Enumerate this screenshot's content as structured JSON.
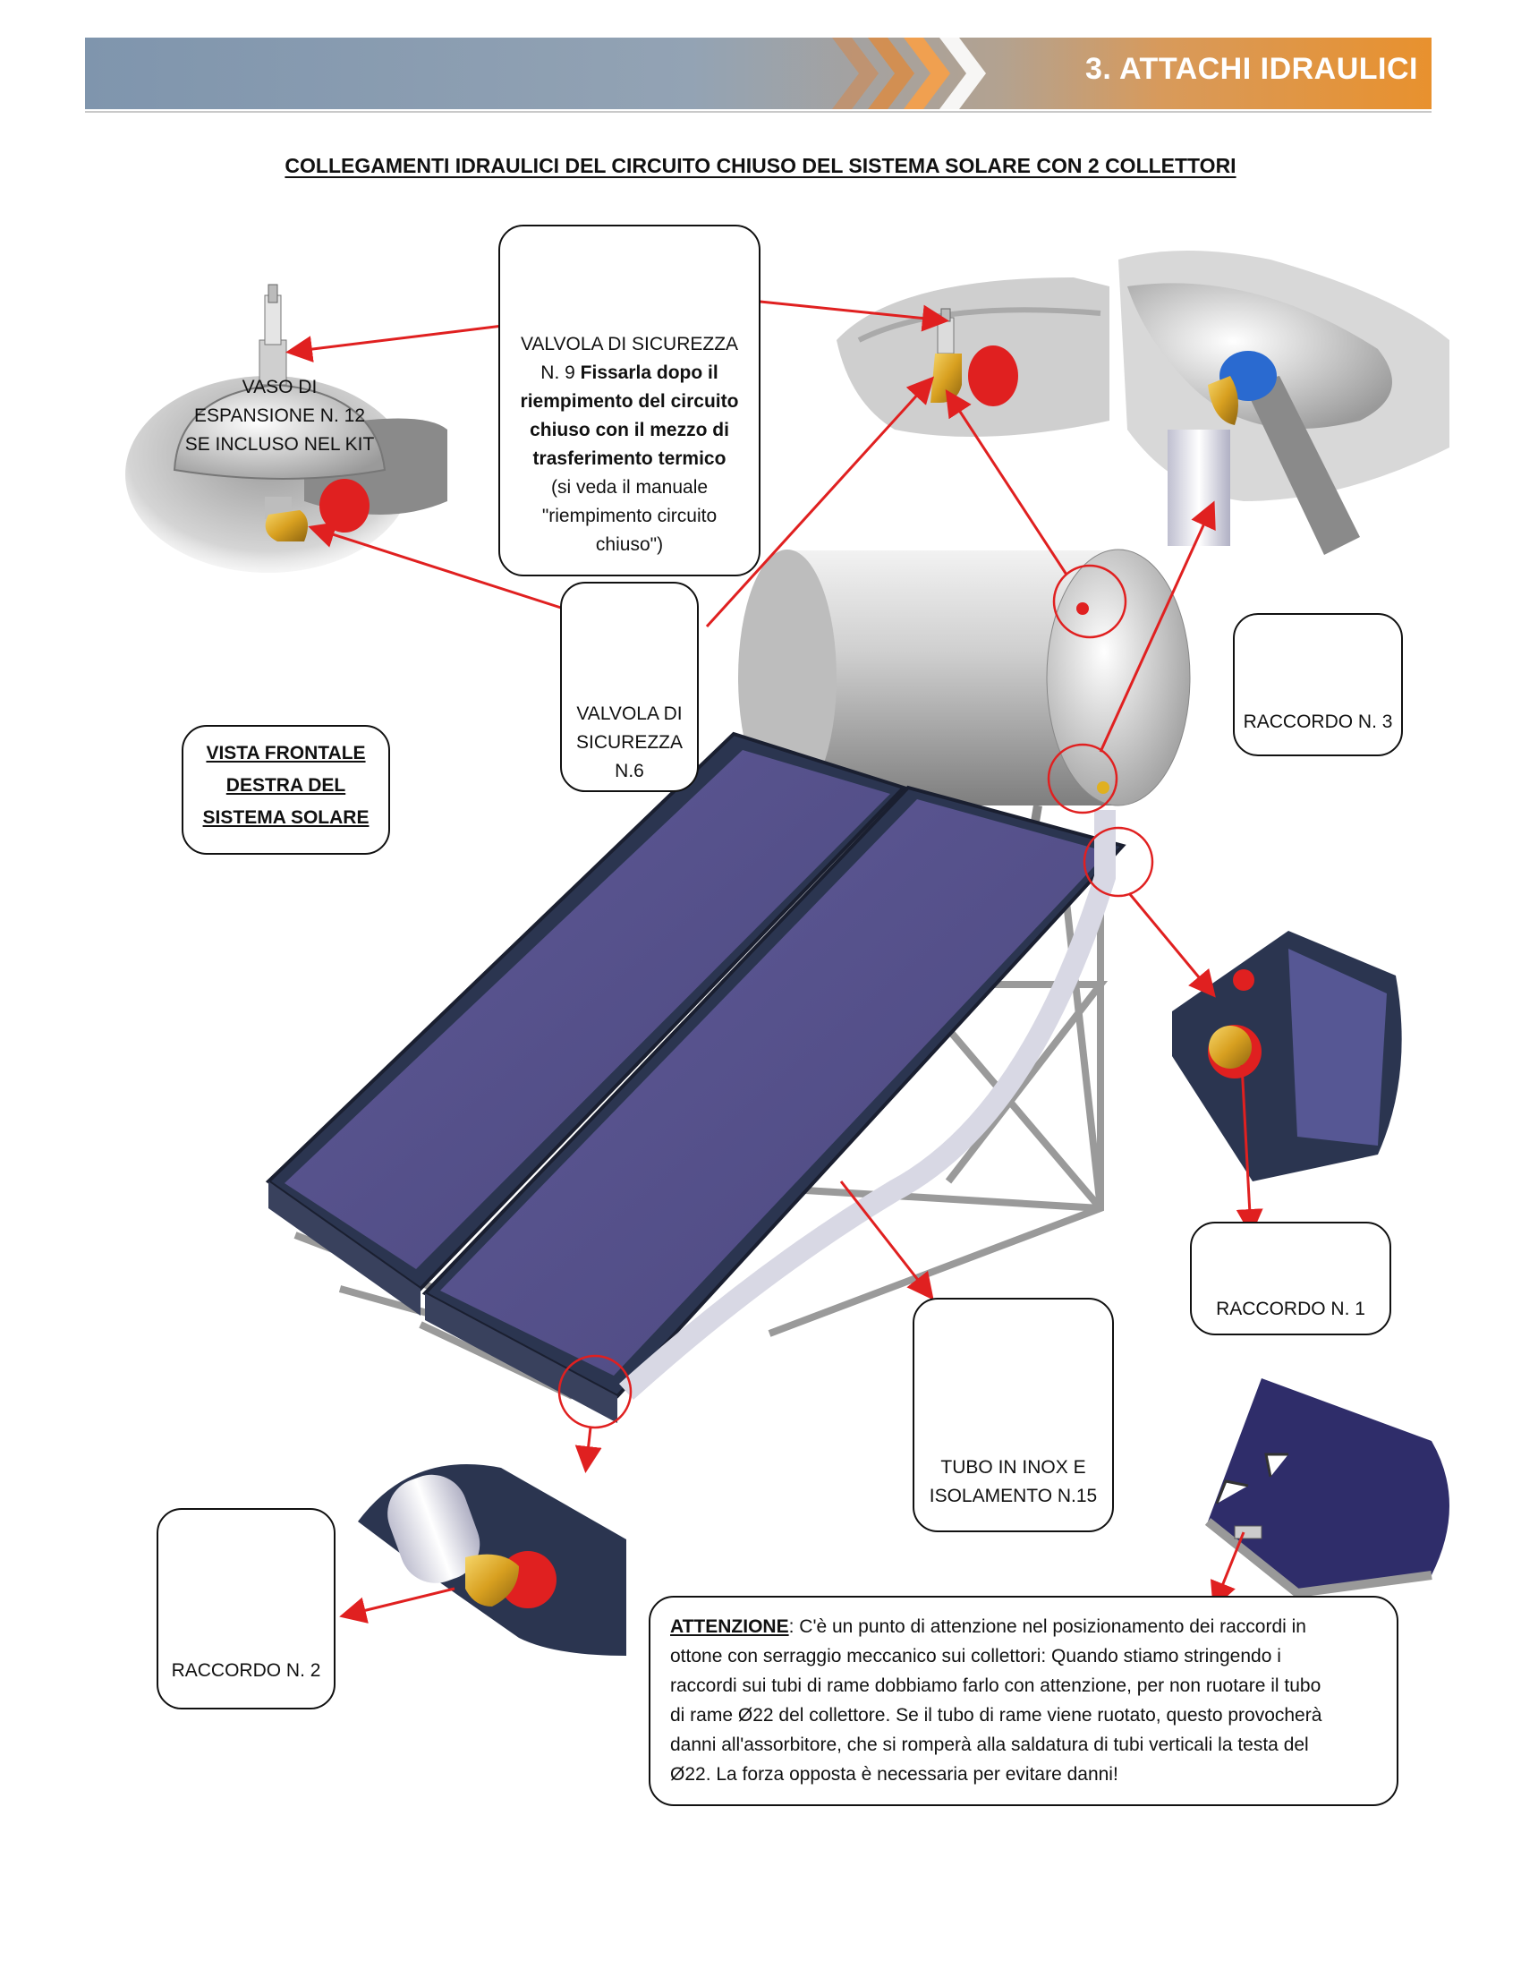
{
  "header": {
    "section_title": "3. ATTACHI IDRAULICI"
  },
  "document": {
    "title": "COLLEGAMENTI IDRAULICI DEL CIRCUITO CHIUSO DEL SISTEMA SOLARE CON 2 COLLETTORI"
  },
  "callouts": {
    "vaso": {
      "line1": "VASO DI",
      "line2": "ESPANSIONE N. 12",
      "line3": "SE INCLUSO NEL KIT"
    },
    "valvola9": {
      "line1": "VALVOLA DI SICUREZZA",
      "line2_plain": "N. 9 ",
      "line2_bold": "Fissarla dopo il",
      "line3": "riempimento del circuito",
      "line4": "chiuso con il mezzo di",
      "line5": "trasferimento termico",
      "line6": "(si veda il manuale",
      "line7": "\"riempimento circuito",
      "line8": "chiuso\")"
    },
    "valvola6": {
      "line1": "VALVOLA DI",
      "line2": "SICUREZZA",
      "line3": "N.6"
    },
    "vista": {
      "line1": "VISTA FRONTALE",
      "line2": "DESTRA DEL",
      "line3": "SISTEMA SOLARE"
    },
    "raccordo3": {
      "label": "RACCORDO N. 3"
    },
    "raccordo1": {
      "label": "RACCORDO N. 1"
    },
    "raccordo2": {
      "label": "RACCORDO N. 2"
    },
    "tubo": {
      "line1": "TUBO IN INOX E",
      "line2": "ISOLAMENTO N.15"
    }
  },
  "note": {
    "heading": "ATTENZIONE",
    "line1": ": C'è un punto di attenzione nel posizionamento dei raccordi in",
    "line2": "ottone con serraggio meccanico sui collettori: Quando stiamo stringendo i",
    "line3": "raccordi sui tubi di rame dobbiamo farlo con attenzione, per non ruotare il tubo",
    "line4": "di rame Ø22 del collettore. Se il tubo di rame viene ruotato, questo provocherà",
    "line5": "danni all'assorbitore, che si romperà alla saldatura di tubi verticali la testa del",
    "line6": "Ø22. La forza opposta è necessaria per evitare danni!"
  },
  "colors": {
    "banner_orange": "#e8912e",
    "banner_blue": "#7f95ad",
    "callout_arrow": "#e02020",
    "panel_glass": "#5a5590",
    "brass": "#d8a020"
  }
}
